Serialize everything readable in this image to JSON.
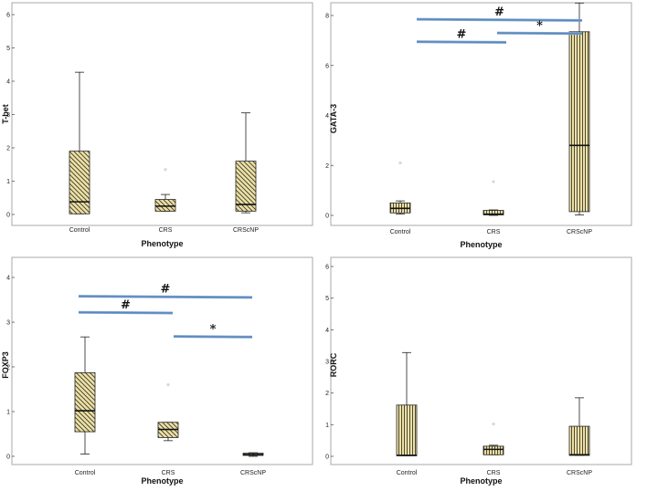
{
  "chart_data": [
    {
      "type": "box",
      "ylabel": "T-bet",
      "xlabel": "Phenotype",
      "categories": [
        "Control",
        "CRS",
        "CRScNP"
      ],
      "ylim": [
        -0.15,
        6.4
      ],
      "yticks": [
        0,
        1,
        2,
        3,
        4,
        5,
        6
      ],
      "boxes": [
        {
          "category": "Control",
          "min": 0.02,
          "q1": 0.02,
          "median": 0.38,
          "q3": 1.9,
          "max": 4.27,
          "outliers": []
        },
        {
          "category": "CRS",
          "min": 0.1,
          "q1": 0.1,
          "median": 0.25,
          "q3": 0.45,
          "max": 0.6,
          "outliers": [
            1.35
          ]
        },
        {
          "category": "CRScNP",
          "min": 0.05,
          "q1": 0.1,
          "median": 0.3,
          "q3": 1.6,
          "max": 3.05,
          "outliers": []
        }
      ],
      "hatch": "diagonal-left",
      "significance": []
    },
    {
      "type": "box",
      "ylabel": "GATA-3",
      "xlabel": "Phenotype",
      "categories": [
        "Control",
        "CRS",
        "CRScNP"
      ],
      "ylim": [
        -0.25,
        8.5
      ],
      "yticks": [
        0,
        2,
        4,
        6,
        8
      ],
      "boxes": [
        {
          "category": "Control",
          "min": 0.05,
          "q1": 0.1,
          "median": 0.28,
          "q3": 0.5,
          "max": 0.58,
          "outliers": [
            2.1
          ]
        },
        {
          "category": "CRS",
          "min": 0.0,
          "q1": 0.02,
          "median": 0.05,
          "q3": 0.2,
          "max": 0.22,
          "outliers": [
            1.35
          ]
        },
        {
          "category": "CRScNP",
          "min": 0.02,
          "q1": 0.15,
          "median": 2.8,
          "q3": 7.35,
          "max": 8.5,
          "outliers": []
        }
      ],
      "hatch": "vertical",
      "significance": [
        {
          "symbol": "#",
          "from": 0,
          "to": 2,
          "y": 7.85
        },
        {
          "symbol": "#",
          "from": 0,
          "to": 1,
          "y": 6.95
        },
        {
          "symbol": "*",
          "from": 1,
          "to": 2,
          "y": 7.3
        }
      ]
    },
    {
      "type": "box",
      "ylabel": "FOXP3",
      "xlabel": "Phenotype",
      "categories": [
        "Control",
        "CRS",
        "CRScNP"
      ],
      "ylim": [
        -0.12,
        4.1
      ],
      "yticks": [
        0,
        1,
        2,
        3,
        4
      ],
      "boxes": [
        {
          "category": "Control",
          "min": 0.05,
          "q1": 0.55,
          "median": 1.02,
          "q3": 1.87,
          "max": 2.67,
          "outliers": []
        },
        {
          "category": "CRS",
          "min": 0.35,
          "q1": 0.42,
          "median": 0.6,
          "q3": 0.76,
          "max": 0.76,
          "outliers": [
            1.6
          ]
        },
        {
          "category": "CRScNP",
          "min": 0.0,
          "q1": 0.02,
          "median": 0.04,
          "q3": 0.07,
          "max": 0.08,
          "outliers": []
        }
      ],
      "hatch": "diagonal-left",
      "significance": [
        {
          "symbol": "#",
          "from": 0,
          "to": 2,
          "y": 3.58
        },
        {
          "symbol": "#",
          "from": 0,
          "to": 1,
          "y": 3.22
        },
        {
          "symbol": "*",
          "from": 1,
          "to": 2,
          "y": 2.68
        }
      ]
    },
    {
      "type": "box",
      "ylabel": "RORC",
      "xlabel": "Phenotype",
      "categories": [
        "Control",
        "CRS",
        "CRScNP"
      ],
      "ylim": [
        -0.15,
        6.4
      ],
      "yticks": [
        0,
        1,
        2,
        3,
        4,
        5,
        6
      ],
      "boxes": [
        {
          "category": "Control",
          "min": 0.02,
          "q1": 0.02,
          "median": 0.03,
          "q3": 1.62,
          "max": 3.28,
          "outliers": []
        },
        {
          "category": "CRS",
          "min": 0.05,
          "q1": 0.05,
          "median": 0.22,
          "q3": 0.32,
          "max": 0.35,
          "outliers": [
            1.02
          ]
        },
        {
          "category": "CRScNP",
          "min": 0.03,
          "q1": 0.03,
          "median": 0.05,
          "q3": 0.95,
          "max": 1.85,
          "outliers": []
        }
      ],
      "hatch": "vertical",
      "significance": []
    }
  ],
  "colors": {
    "box_fill": "#ede0a6",
    "hatch": "#3a3a28",
    "significance_line": "#5b86b8",
    "frame": "#aaaaaa"
  }
}
